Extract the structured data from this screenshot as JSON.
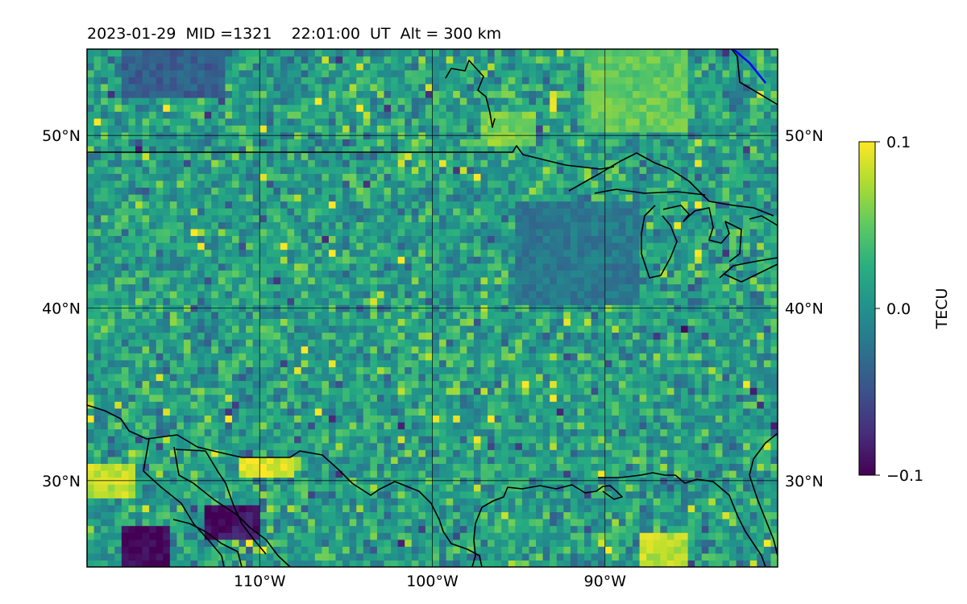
{
  "chart_data": {
    "type": "heatmap",
    "title": "2023-01-29  MID =1321    22:01:00  UT  Alt = 300 km",
    "lon_range": [
      -120,
      -80
    ],
    "lat_range": [
      25,
      55
    ],
    "x_ticks": [
      {
        "value": -110,
        "label": "110°W"
      },
      {
        "value": -100,
        "label": "100°W"
      },
      {
        "value": -90,
        "label": "90°W"
      }
    ],
    "y_ticks": [
      {
        "value": 50,
        "label": "50°N"
      },
      {
        "value": 40,
        "label": "40°N"
      },
      {
        "value": 30,
        "label": "30°N"
      }
    ],
    "grid": true,
    "colorbar": {
      "label": "TECU",
      "vmin": -0.1,
      "vmax": 0.1,
      "ticks": [
        {
          "value": 0.1,
          "label": "0.1"
        },
        {
          "value": 0.0,
          "label": "0.0"
        },
        {
          "value": -0.1,
          "label": "−0.1"
        }
      ],
      "colormap": "viridis"
    },
    "features": [
      {
        "name": "high positive patch",
        "lon": [
          -91,
          -85
        ],
        "lat": [
          50,
          55
        ],
        "value": 0.05
      },
      {
        "name": "high positive patch",
        "lon": [
          -97,
          -94
        ],
        "lat": [
          49.5,
          51.5
        ],
        "value": 0.06
      },
      {
        "name": "strong negative patch",
        "lon": [
          -118,
          -115
        ],
        "lat": [
          25,
          27.5
        ],
        "value": -0.1
      },
      {
        "name": "strong negative patch",
        "lon": [
          -113,
          -110
        ],
        "lat": [
          26.5,
          28.5
        ],
        "value": -0.09
      },
      {
        "name": "positive patch",
        "lon": [
          -120,
          -117
        ],
        "lat": [
          29,
          31
        ],
        "value": 0.08
      },
      {
        "name": "positive patch",
        "lon": [
          -111,
          -108
        ],
        "lat": [
          30,
          31.5
        ],
        "value": 0.09
      },
      {
        "name": "positive patch",
        "lon": [
          -88,
          -85
        ],
        "lat": [
          25,
          27
        ],
        "value": 0.08
      },
      {
        "name": "negative region",
        "lon": [
          -118,
          -112
        ],
        "lat": [
          52,
          55
        ],
        "value": -0.04
      },
      {
        "name": "negative region",
        "lon": [
          -95,
          -88
        ],
        "lat": [
          40,
          46
        ],
        "value": -0.02
      }
    ]
  }
}
